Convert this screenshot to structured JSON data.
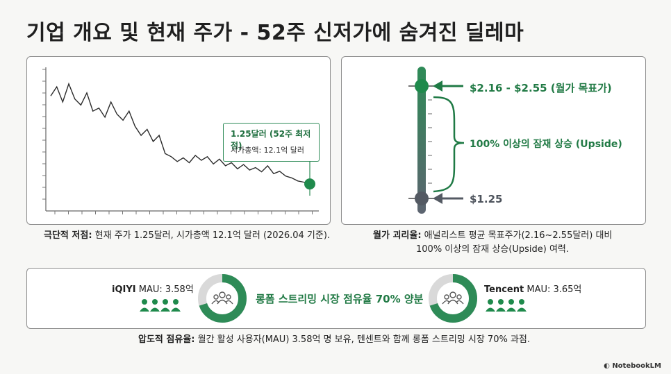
{
  "title": "기업 개요 및 현재 주가 - 52주 신저가에 숨겨진 딜레마",
  "chart_data": {
    "type": "line",
    "series": [
      {
        "values": [
          2.7,
          2.85,
          2.6,
          2.9,
          2.65,
          2.55,
          2.75,
          2.45,
          2.5,
          2.35,
          2.6,
          2.4,
          2.3,
          2.45,
          2.2,
          2.05,
          2.15,
          1.95,
          2.05,
          1.75,
          1.7,
          1.62,
          1.68,
          1.6,
          1.72,
          1.64,
          1.7,
          1.58,
          1.66,
          1.55,
          1.6,
          1.5,
          1.57,
          1.48,
          1.52,
          1.45,
          1.55,
          1.42,
          1.46,
          1.38,
          1.35,
          1.3,
          1.28,
          1.25
        ]
      }
    ],
    "annotation": {
      "label": "1.25달러 (52주 최저점)",
      "sublabel": "시가총액: 12.1억 달러"
    }
  },
  "captions": {
    "chart_bold": "극단적 저점:",
    "chart_text": " 현재 주가 1.25달러, 시가총액 12.1억 달러 (2026.04 기준).",
    "gauge_bold": "월가 괴리율:",
    "gauge_text_1": " 애널리스트 평균 목표주가(2.16~2.55달러) 대비",
    "gauge_text_2": "100% 이상의 잠재 상승(Upside) 여력.",
    "share_bold": "압도적 점유율:",
    "share_text": " 월간 활성 사용자(MAU) 3.58억 명 보유, 텐센트와 함께 롱폼 스트리밍 시장 70% 과점."
  },
  "gauge": {
    "target_label": "$2.16 - $2.55 (월가 목표가)",
    "upside_label": "100% 이상의 잠재 상승 (Upside)",
    "current_label": "$1.25",
    "target_value": 2.35,
    "current_value": 1.25
  },
  "share": {
    "left_brand": "iQIYI",
    "left_mau": " MAU: 3.58억",
    "right_brand": "Tencent",
    "right_mau": " MAU: 3.65억",
    "center_text": "롱폼 스트리밍 시장 점유율 70% 양분",
    "left_share": 0.7,
    "right_share": 0.7
  },
  "colors": {
    "green": "#2e8b57",
    "dark_green": "#1f6b3f",
    "gray": "#5f6570"
  },
  "footer": "NotebookLM"
}
